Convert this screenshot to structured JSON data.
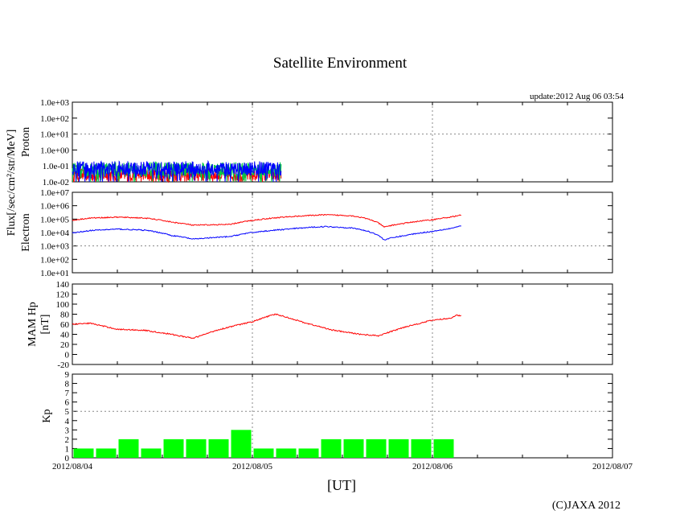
{
  "title": "Satellite Environment",
  "update": "update:2012 Aug 06 03:54",
  "copyright": "(C)JAXA 2012",
  "x_axis_label": "[UT]",
  "x_ticks": [
    "2012/08/04",
    "2012/08/05",
    "2012/08/06",
    "2012/08/07"
  ],
  "flux_ylabel": "Flux[/sec/cm²/str/MeV]",
  "colors": {
    "red": "#ff0000",
    "blue": "#0000ff",
    "green": "#00cc44",
    "kp": "#00ff00",
    "grid": "#888888"
  },
  "chart_data": [
    {
      "type": "line",
      "panel": "proton",
      "ylabel": "Proton",
      "yscale": "log",
      "ylim": [
        0.01,
        1000
      ],
      "yticks": [
        "1.0e-02",
        "1.0e-01",
        "1.0e+00",
        "1.0e+01",
        "1.0e+02",
        "1.0e+03"
      ],
      "x_unit": "days since 2012/08/04 00:00 UT",
      "xlim": [
        0,
        3
      ],
      "data_end": 1.16,
      "series": [
        {
          "name": "proton-1",
          "color": "red",
          "noise": true,
          "x": [
            0,
            1.16
          ],
          "values": [
            0.02,
            0.02
          ]
        },
        {
          "name": "proton-2",
          "color": "green",
          "noise": true,
          "x": [
            0,
            1.16
          ],
          "values": [
            0.06,
            0.06
          ]
        },
        {
          "name": "proton-3",
          "color": "blue",
          "noise": true,
          "x": [
            0,
            1.16
          ],
          "values": [
            0.07,
            0.07
          ]
        }
      ]
    },
    {
      "type": "line",
      "panel": "electron",
      "ylabel": "Electron",
      "yscale": "log",
      "ylim": [
        10,
        10000000
      ],
      "yticks": [
        "1.0e+01",
        "1.0e+02",
        "1.0e+03",
        "1.0e+04",
        "1.0e+05",
        "1.0e+06",
        "1.0e+07"
      ],
      "xlim": [
        0,
        3
      ],
      "series": [
        {
          "name": "electron-high",
          "color": "red",
          "x": [
            0,
            0.1,
            0.25,
            0.4,
            0.55,
            0.67,
            0.88,
            1.0,
            1.2,
            1.4,
            1.55,
            1.73,
            1.85,
            2.0,
            2.1,
            2.16
          ],
          "values": [
            80000,
            120000,
            140000,
            120000,
            60000,
            35000,
            40000,
            80000,
            150000,
            210000,
            180000,
            25000,
            50000,
            90000,
            140000,
            200000
          ]
        },
        {
          "name": "electron-low",
          "color": "blue",
          "x": [
            0,
            0.1,
            0.25,
            0.4,
            0.55,
            0.67,
            0.88,
            1.0,
            1.2,
            1.4,
            1.55,
            1.73,
            1.85,
            2.0,
            2.1,
            2.16
          ],
          "values": [
            9000,
            14000,
            18000,
            15000,
            6000,
            3200,
            5000,
            10000,
            18000,
            28000,
            22000,
            2800,
            6000,
            12000,
            20000,
            30000
          ]
        }
      ]
    },
    {
      "type": "line",
      "panel": "mam-hp",
      "ylabel": "MAM Hp [nT]",
      "ylim": [
        -20,
        140
      ],
      "yticks": [
        "-20",
        "0",
        "20",
        "40",
        "60",
        "80",
        "100",
        "120",
        "140"
      ],
      "xlim": [
        0,
        3
      ],
      "series": [
        {
          "name": "MAM Hp",
          "color": "red",
          "x": [
            0,
            0.1,
            0.25,
            0.4,
            0.55,
            0.67,
            0.8,
            0.9,
            1.0,
            1.08,
            1.13,
            1.2,
            1.3,
            1.45,
            1.6,
            1.7,
            1.85,
            2.0,
            2.1,
            2.13,
            2.16
          ],
          "values": [
            60,
            62,
            50,
            48,
            40,
            32,
            48,
            57,
            65,
            75,
            80,
            73,
            62,
            48,
            40,
            37,
            55,
            68,
            72,
            78,
            77
          ]
        }
      ]
    },
    {
      "type": "bar",
      "panel": "kp",
      "ylabel": "Kp",
      "ylim": [
        0,
        9
      ],
      "yticks": [
        "0",
        "1",
        "2",
        "3",
        "4",
        "5",
        "6",
        "7",
        "8",
        "9"
      ],
      "xlim": [
        0,
        3
      ],
      "bar_width": 0.125,
      "values": [
        1,
        1,
        2,
        1,
        2,
        2,
        2,
        3,
        1,
        1,
        1,
        2,
        2,
        2,
        2,
        2,
        2
      ]
    }
  ]
}
